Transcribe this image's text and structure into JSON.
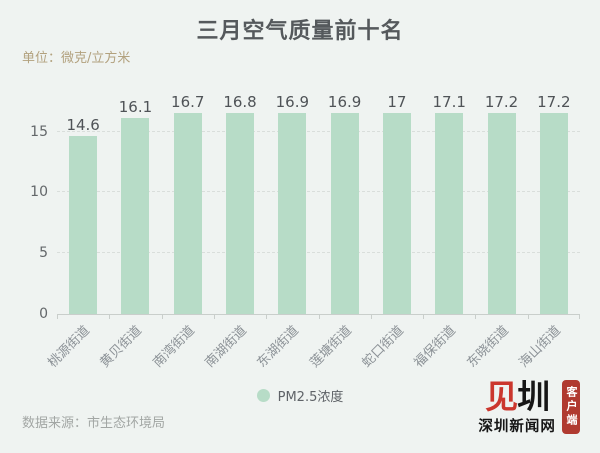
{
  "page": {
    "background": "#eff3f1"
  },
  "header": {
    "title": "三月空气质量前十名",
    "unit_label": "单位：微克/立方米"
  },
  "chart_data": {
    "type": "bar",
    "title": "三月空气质量前十名",
    "unit": "微克/立方米",
    "categories": [
      "桃源街道",
      "黄贝街道",
      "南湾街道",
      "南湖街道",
      "东湖街道",
      "莲塘街道",
      "蛇口街道",
      "福保街道",
      "东晓街道",
      "海山街道"
    ],
    "values": [
      14.6,
      16.1,
      16.7,
      16.8,
      16.9,
      16.9,
      17,
      17.1,
      17.2,
      17.2
    ],
    "value_labels": [
      "14.6",
      "16.1",
      "16.7",
      "16.8",
      "16.9",
      "16.9",
      "17",
      "17.1",
      "17.2",
      "17.2"
    ],
    "series": [
      {
        "name": "PM2.5浓度",
        "values": [
          14.6,
          16.1,
          16.7,
          16.8,
          16.9,
          16.9,
          17,
          17.1,
          17.2,
          17.2
        ]
      }
    ],
    "xlabel": "",
    "ylabel": "",
    "y_ticks": [
      0,
      5,
      10,
      15
    ],
    "ylim": [
      0,
      18
    ],
    "grid": "horizontal-dashed",
    "legend_position": "bottom-center",
    "bar_color": "#b7dcc7",
    "x_label_rotation": 45
  },
  "legend": {
    "dot_color": "#b7dcc7",
    "label": "PM2.5浓度"
  },
  "footer": {
    "source": "数据来源：市生态环境局"
  },
  "logo": {
    "mark_left": "见",
    "mark_right": "圳",
    "name": "深圳新闻网",
    "badge": "客户端",
    "badge_color": "#b03a30"
  },
  "colors": {
    "background": "#eff3f1",
    "title": "#55595c",
    "unit_text": "#b2a17e",
    "value_label": "#4f5357",
    "y_axis_label": "#63676a",
    "x_axis_label": "#8b9196",
    "axis_line": "#c9cecb",
    "gridline": "#d9dedb",
    "source_text": "#a2a6a4"
  }
}
